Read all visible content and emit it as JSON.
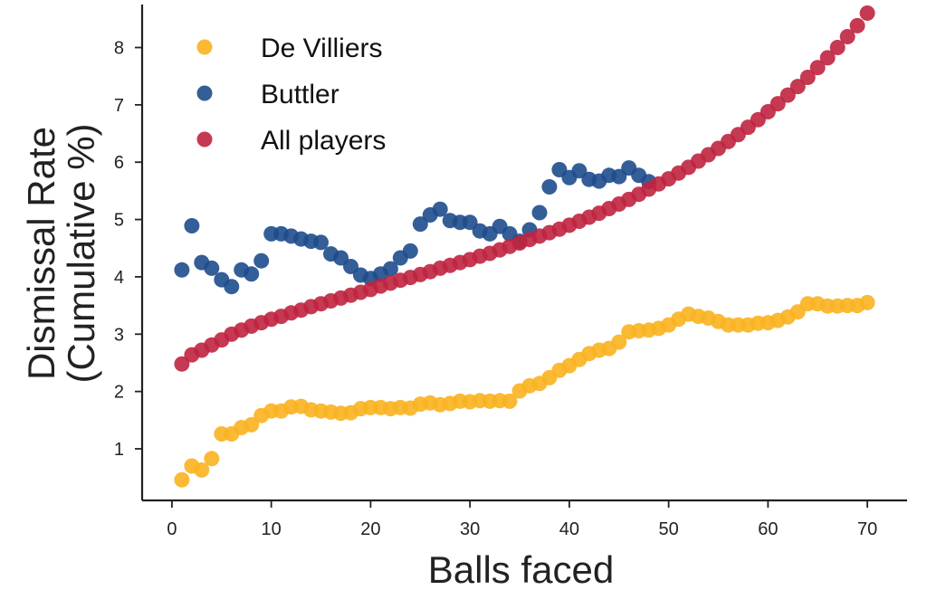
{
  "chart_data": {
    "type": "scatter",
    "title": "",
    "xlabel": "Balls faced",
    "ylabel_lines": [
      "Dismissal Rate",
      "(Cumulative %)"
    ],
    "xlim": [
      -3,
      74
    ],
    "ylim": [
      0.1,
      8.75
    ],
    "xticks": [
      0,
      10,
      20,
      30,
      40,
      50,
      60,
      70
    ],
    "yticks": [
      1,
      2,
      3,
      4,
      5,
      6,
      7,
      8
    ],
    "grid": false,
    "legend_position": "top-left",
    "series": [
      {
        "name": "De Villiers",
        "color": "#F9B31F",
        "x": [
          1,
          2,
          3,
          4,
          5,
          6,
          7,
          8,
          9,
          10,
          11,
          12,
          13,
          14,
          15,
          16,
          17,
          18,
          19,
          20,
          21,
          22,
          23,
          24,
          25,
          26,
          27,
          28,
          29,
          30,
          31,
          32,
          33,
          34,
          35,
          36,
          37,
          38,
          39,
          40,
          41,
          42,
          43,
          44,
          45,
          46,
          47,
          48,
          49,
          50,
          51,
          52,
          53,
          54,
          55,
          56,
          57,
          58,
          59,
          60,
          61,
          62,
          63,
          64,
          65,
          66,
          67,
          68,
          69,
          70
        ],
        "y": [
          0.46,
          0.7,
          0.63,
          0.83,
          1.26,
          1.26,
          1.37,
          1.42,
          1.58,
          1.66,
          1.66,
          1.73,
          1.74,
          1.68,
          1.66,
          1.64,
          1.62,
          1.63,
          1.7,
          1.72,
          1.72,
          1.7,
          1.72,
          1.71,
          1.78,
          1.8,
          1.77,
          1.79,
          1.83,
          1.82,
          1.84,
          1.83,
          1.84,
          1.83,
          2.01,
          2.1,
          2.14,
          2.24,
          2.37,
          2.45,
          2.56,
          2.66,
          2.72,
          2.75,
          2.86,
          3.04,
          3.06,
          3.07,
          3.1,
          3.16,
          3.26,
          3.35,
          3.31,
          3.28,
          3.22,
          3.16,
          3.16,
          3.16,
          3.19,
          3.2,
          3.24,
          3.3,
          3.39,
          3.53,
          3.53,
          3.49,
          3.49,
          3.5,
          3.5,
          3.55
        ]
      },
      {
        "name": "Buttler",
        "color": "#1E4D8C",
        "x": [
          1,
          2,
          3,
          4,
          5,
          6,
          7,
          8,
          9,
          10,
          11,
          12,
          13,
          14,
          15,
          16,
          17,
          18,
          19,
          20,
          21,
          22,
          23,
          24,
          25,
          26,
          27,
          28,
          29,
          30,
          31,
          32,
          33,
          34,
          35,
          36,
          37,
          38,
          39,
          40,
          41,
          42,
          43,
          44,
          45,
          46,
          47,
          48
        ],
        "y": [
          4.12,
          4.89,
          4.25,
          4.15,
          3.95,
          3.83,
          4.12,
          4.05,
          4.28,
          4.75,
          4.75,
          4.71,
          4.66,
          4.62,
          4.6,
          4.4,
          4.33,
          4.18,
          4.03,
          3.97,
          4.05,
          4.14,
          4.33,
          4.45,
          4.92,
          5.08,
          5.18,
          4.98,
          4.95,
          4.95,
          4.8,
          4.75,
          4.88,
          4.75,
          4.62,
          4.82,
          5.12,
          5.57,
          5.87,
          5.73,
          5.85,
          5.7,
          5.67,
          5.77,
          5.75,
          5.9,
          5.77,
          5.66
        ]
      },
      {
        "name": "All players",
        "color": "#C0233F",
        "x": [
          1,
          2,
          3,
          4,
          5,
          6,
          7,
          8,
          9,
          10,
          11,
          12,
          13,
          14,
          15,
          16,
          17,
          18,
          19,
          20,
          21,
          22,
          23,
          24,
          25,
          26,
          27,
          28,
          29,
          30,
          31,
          32,
          33,
          34,
          35,
          36,
          37,
          38,
          39,
          40,
          41,
          42,
          43,
          44,
          45,
          46,
          47,
          48,
          49,
          50,
          51,
          52,
          53,
          54,
          55,
          56,
          57,
          58,
          59,
          60,
          61,
          62,
          63,
          64,
          65,
          66,
          67,
          68,
          69,
          70
        ],
        "y": [
          2.48,
          2.64,
          2.72,
          2.81,
          2.9,
          3.0,
          3.07,
          3.14,
          3.2,
          3.26,
          3.31,
          3.37,
          3.42,
          3.48,
          3.53,
          3.58,
          3.63,
          3.68,
          3.73,
          3.78,
          3.84,
          3.89,
          3.94,
          3.99,
          4.04,
          4.09,
          4.15,
          4.2,
          4.25,
          4.3,
          4.36,
          4.41,
          4.47,
          4.53,
          4.59,
          4.65,
          4.71,
          4.77,
          4.83,
          4.9,
          4.97,
          5.04,
          5.11,
          5.19,
          5.27,
          5.35,
          5.44,
          5.53,
          5.62,
          5.71,
          5.81,
          5.91,
          6.02,
          6.13,
          6.24,
          6.36,
          6.48,
          6.61,
          6.74,
          6.88,
          7.02,
          7.17,
          7.32,
          7.48,
          7.65,
          7.82,
          8.0,
          8.19,
          8.38,
          8.6
        ]
      }
    ]
  }
}
